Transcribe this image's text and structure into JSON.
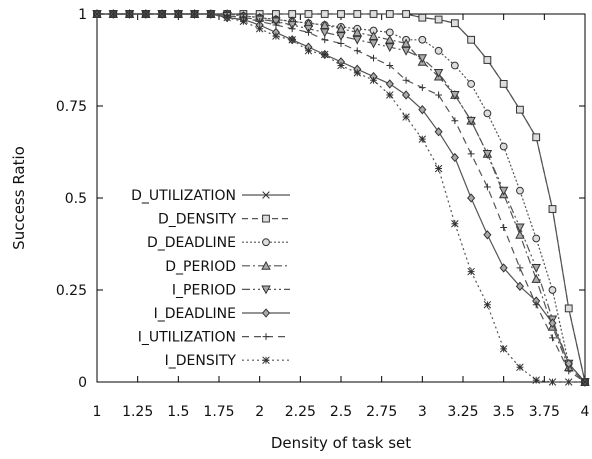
{
  "chart_data": {
    "type": "line",
    "xlabel": "Density of task set",
    "ylabel": "Success Ratio",
    "xlim": [
      1,
      4
    ],
    "ylim": [
      0,
      1
    ],
    "x_ticks": [
      "1",
      "1.25",
      "1.5",
      "1.75",
      "2",
      "2.25",
      "2.5",
      "2.75",
      "3",
      "3.25",
      "3.5",
      "3.75",
      "4"
    ],
    "y_ticks": [
      "0",
      "0.25",
      "0.5",
      "0.75",
      "1"
    ],
    "legend_position": "left",
    "x": [
      1.0,
      1.1,
      1.2,
      1.3,
      1.4,
      1.5,
      1.6,
      1.7,
      1.8,
      1.9,
      2.0,
      2.1,
      2.2,
      2.3,
      2.4,
      2.5,
      2.6,
      2.7,
      2.8,
      2.9,
      3.0,
      3.1,
      3.2,
      3.3,
      3.4,
      3.5,
      3.6,
      3.7,
      3.8,
      3.9,
      4.0
    ],
    "series": [
      {
        "name": "D_UTILIZATION",
        "marker": "x",
        "dash": "",
        "values": [
          1,
          1,
          1,
          1,
          1,
          1,
          1,
          1,
          1,
          1,
          1,
          1,
          1,
          1,
          1,
          1,
          1,
          1,
          1,
          1,
          0.99,
          0.985,
          0.975,
          0.93,
          0.875,
          0.81,
          0.74,
          0.665,
          0.47,
          0.2,
          0
        ]
      },
      {
        "name": "D_DENSITY",
        "marker": "square",
        "dash": "6,4",
        "values": [
          1,
          1,
          1,
          1,
          1,
          1,
          1,
          1,
          1,
          1,
          1,
          1,
          1,
          1,
          1,
          1,
          1,
          1,
          1,
          1,
          0.99,
          0.985,
          0.975,
          0.93,
          0.875,
          0.81,
          0.74,
          0.665,
          0.47,
          0.2,
          0
        ]
      },
      {
        "name": "D_DEADLINE",
        "marker": "circle",
        "dash": "2,2",
        "values": [
          1,
          1,
          1,
          1,
          1,
          1,
          1,
          1,
          1,
          0.995,
          0.99,
          0.985,
          0.98,
          0.975,
          0.97,
          0.965,
          0.96,
          0.955,
          0.95,
          0.93,
          0.93,
          0.9,
          0.86,
          0.81,
          0.73,
          0.64,
          0.52,
          0.39,
          0.25,
          0.05,
          0
        ]
      },
      {
        "name": "D_PERIOD",
        "marker": "triangle-up",
        "dash": "8,3,2,3",
        "values": [
          1,
          1,
          1,
          1,
          1,
          1,
          1,
          1,
          1,
          0.995,
          0.99,
          0.985,
          0.98,
          0.975,
          0.97,
          0.96,
          0.95,
          0.94,
          0.93,
          0.92,
          0.87,
          0.83,
          0.78,
          0.71,
          0.62,
          0.51,
          0.4,
          0.28,
          0.15,
          0.04,
          0
        ]
      },
      {
        "name": "I_PERIOD",
        "marker": "triangle-down",
        "dash": "8,3,2,3,2,3",
        "values": [
          1,
          1,
          1,
          1,
          1,
          1,
          1,
          1,
          0.995,
          0.99,
          0.985,
          0.98,
          0.97,
          0.96,
          0.95,
          0.94,
          0.93,
          0.92,
          0.91,
          0.9,
          0.88,
          0.84,
          0.78,
          0.71,
          0.62,
          0.52,
          0.42,
          0.31,
          0.17,
          0.05,
          0
        ]
      },
      {
        "name": "I_DEADLINE",
        "marker": "diamond",
        "dash": "",
        "values": [
          1,
          1,
          1,
          1,
          1,
          1,
          1,
          1,
          0.99,
          0.985,
          0.97,
          0.95,
          0.93,
          0.91,
          0.89,
          0.87,
          0.85,
          0.83,
          0.81,
          0.78,
          0.74,
          0.68,
          0.61,
          0.5,
          0.4,
          0.31,
          0.26,
          0.22,
          0.16,
          0.05,
          0
        ]
      },
      {
        "name": "I_UTILIZATION",
        "marker": "plus",
        "dash": "7,5",
        "values": [
          1,
          1,
          1,
          1,
          1,
          1,
          1,
          1,
          0.995,
          0.99,
          0.98,
          0.97,
          0.96,
          0.95,
          0.93,
          0.92,
          0.9,
          0.88,
          0.86,
          0.82,
          0.8,
          0.78,
          0.71,
          0.62,
          0.53,
          0.42,
          0.31,
          0.21,
          0.12,
          0.03,
          0
        ]
      },
      {
        "name": "I_DENSITY",
        "marker": "star",
        "dash": "2,3",
        "values": [
          1,
          1,
          1,
          1,
          1,
          1,
          1,
          1,
          0.99,
          0.98,
          0.96,
          0.94,
          0.93,
          0.9,
          0.89,
          0.86,
          0.84,
          0.82,
          0.78,
          0.72,
          0.66,
          0.58,
          0.43,
          0.3,
          0.21,
          0.09,
          0.04,
          0.005,
          0,
          0,
          0
        ]
      }
    ]
  }
}
